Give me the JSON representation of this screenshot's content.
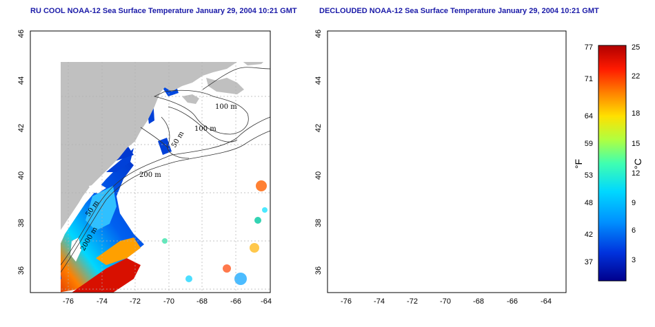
{
  "titles": {
    "left": "RU COOL NOAA-12 Sea Surface Temperature January 29, 2004 10:21 GMT",
    "right": "DECLOUDED NOAA-12 Sea Surface Temperature January 29, 2004 10:21 GMT"
  },
  "map": {
    "lat_ticks": [
      "46",
      "44",
      "42",
      "40",
      "38",
      "36"
    ],
    "lon_ticks": [
      "-76",
      "-74",
      "-72",
      "-70",
      "-68",
      "-66",
      "-64"
    ],
    "contour_labels": [
      "100 m",
      "100 m",
      "50 m",
      "200 m",
      "50 m",
      "2000 m"
    ]
  },
  "colorbar": {
    "fahrenheit_ticks": [
      "77",
      "71",
      "64",
      "59",
      "53",
      "48",
      "42",
      "37"
    ],
    "celsius_ticks": [
      "25",
      "22",
      "18",
      "15",
      "12",
      "9",
      "6",
      "3"
    ],
    "fahrenheit_label": "°F",
    "celsius_label": "°C",
    "gradient": [
      "#00008c",
      "#0033dd",
      "#0090ff",
      "#00d8ff",
      "#40ffb0",
      "#b0ff40",
      "#ffe000",
      "#ff8000",
      "#ff1a00",
      "#b00000"
    ]
  },
  "colors": {
    "land": "#c0c0c0",
    "title": "#1a1aa8",
    "grid": "#b0b0b0"
  }
}
